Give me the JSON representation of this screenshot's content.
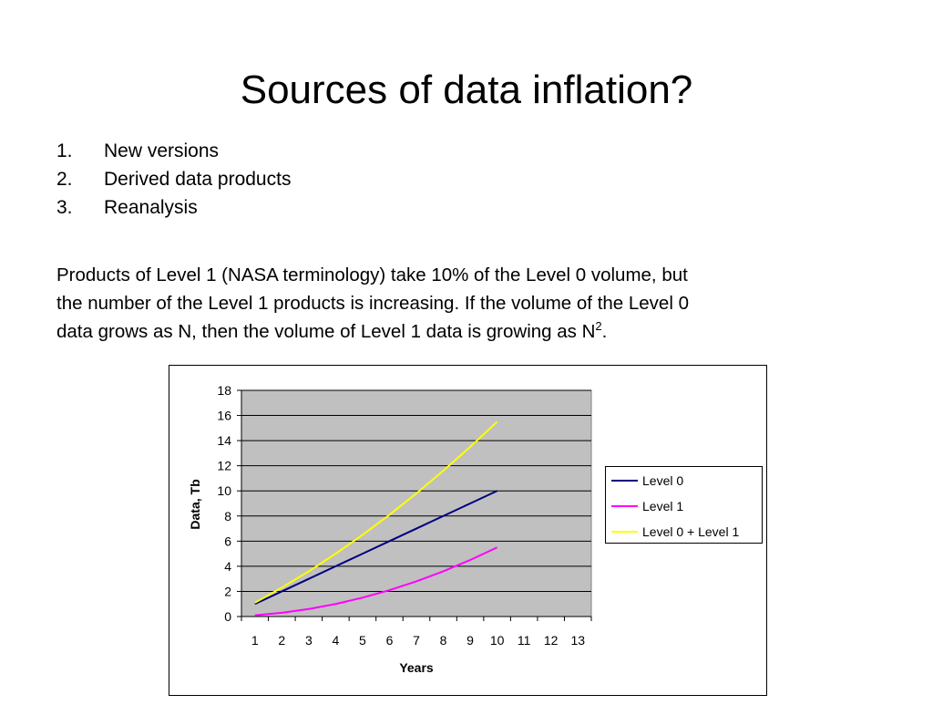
{
  "title": "Sources of data inflation?",
  "list": [
    {
      "number": "1.",
      "text": "New versions"
    },
    {
      "number": "2.",
      "text": "Derived data products"
    },
    {
      "number": "3.",
      "text": "Reanalysis"
    }
  ],
  "paragraph": {
    "lines": [
      "Products of Level 1 (NASA terminology) take 10% of the Level 0 volume, but",
      "the number of the Level 1 products is increasing. If the volume of the Level 0",
      "data grows as N, then the volume of Level 1 data is growing as N"
    ],
    "superscript": "2",
    "end": "."
  },
  "chart_data": {
    "type": "line",
    "x_label": "Years",
    "y_label": "Data, Tb",
    "categories": [
      "1",
      "2",
      "3",
      "4",
      "5",
      "6",
      "7",
      "8",
      "9",
      "10",
      "11",
      "12",
      "13"
    ],
    "series": [
      {
        "name": "Level 0",
        "color": "#000080",
        "values": [
          1,
          2,
          3,
          4,
          5,
          6,
          7,
          8,
          9,
          10,
          null,
          null,
          null
        ]
      },
      {
        "name": "Level 1",
        "color": "#ff00ff",
        "values": [
          0.1,
          0.3,
          0.6,
          1.0,
          1.5,
          2.1,
          2.8,
          3.6,
          4.5,
          5.5,
          null,
          null,
          null
        ]
      },
      {
        "name": "Level 0 + Level 1",
        "color": "#ffff00",
        "values": [
          1.1,
          2.3,
          3.6,
          5.0,
          6.5,
          8.1,
          9.8,
          11.6,
          13.5,
          15.5,
          null,
          null,
          null
        ]
      }
    ],
    "ylim": [
      0,
      18
    ],
    "yticks": [
      0,
      2,
      4,
      6,
      8,
      10,
      12,
      14,
      16,
      18
    ],
    "grid": true,
    "plot_background": "#c0c0c0",
    "legend": "right"
  }
}
